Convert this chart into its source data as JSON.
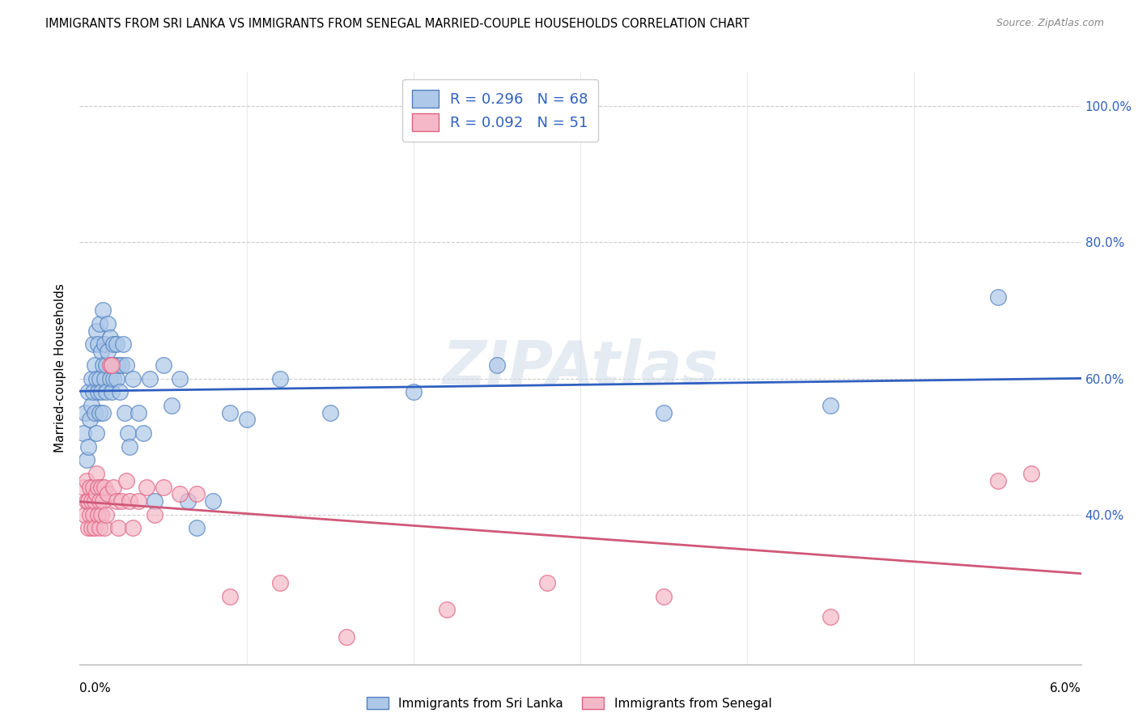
{
  "title": "IMMIGRANTS FROM SRI LANKA VS IMMIGRANTS FROM SENEGAL MARRIED-COUPLE HOUSEHOLDS CORRELATION CHART",
  "source": "Source: ZipAtlas.com",
  "ylabel": "Married-couple Households",
  "ytick_values": [
    100,
    80,
    60,
    40
  ],
  "ytick_labels": [
    "100.0%",
    "80.0%",
    "60.0%",
    "40.0%"
  ],
  "xrange": [
    0.0,
    6.0
  ],
  "yrange": [
    18,
    105
  ],
  "watermark": "ZIPAtlas",
  "legend_r1": "R = 0.296",
  "legend_n1": "N = 68",
  "legend_r2": "R = 0.092",
  "legend_n2": "N = 51",
  "color_sri_lanka_fill": "#adc8e8",
  "color_senegal_fill": "#f5b8c8",
  "color_sri_lanka_edge": "#5080c0",
  "color_senegal_edge": "#e06080",
  "color_line_sri_lanka": "#3060c0",
  "color_line_senegal": "#d05878",
  "title_fontsize": 10.5,
  "sri_lanka_x": [
    0.02,
    0.03,
    0.04,
    0.05,
    0.05,
    0.06,
    0.07,
    0.07,
    0.08,
    0.08,
    0.09,
    0.09,
    0.1,
    0.1,
    0.1,
    0.11,
    0.11,
    0.12,
    0.12,
    0.12,
    0.13,
    0.13,
    0.14,
    0.14,
    0.14,
    0.15,
    0.15,
    0.16,
    0.16,
    0.17,
    0.17,
    0.18,
    0.18,
    0.19,
    0.19,
    0.2,
    0.2,
    0.21,
    0.22,
    0.22,
    0.23,
    0.24,
    0.25,
    0.26,
    0.27,
    0.28,
    0.29,
    0.3,
    0.32,
    0.35,
    0.38,
    0.42,
    0.45,
    0.5,
    0.55,
    0.6,
    0.65,
    0.7,
    0.8,
    0.9,
    1.0,
    1.2,
    1.5,
    2.0,
    2.5,
    3.5,
    4.5,
    5.5
  ],
  "sri_lanka_y": [
    52,
    55,
    48,
    58,
    50,
    54,
    60,
    56,
    58,
    65,
    55,
    62,
    52,
    60,
    67,
    58,
    65,
    60,
    55,
    68,
    58,
    64,
    62,
    55,
    70,
    60,
    65,
    62,
    58,
    64,
    68,
    60,
    66,
    58,
    62,
    60,
    65,
    62,
    60,
    65,
    62,
    58,
    62,
    65,
    55,
    62,
    52,
    50,
    60,
    55,
    52,
    60,
    42,
    62,
    56,
    60,
    42,
    38,
    42,
    55,
    54,
    60,
    55,
    58,
    62,
    55,
    56,
    72
  ],
  "senegal_x": [
    0.02,
    0.03,
    0.04,
    0.04,
    0.05,
    0.05,
    0.06,
    0.06,
    0.07,
    0.07,
    0.08,
    0.08,
    0.09,
    0.09,
    0.1,
    0.1,
    0.11,
    0.11,
    0.12,
    0.12,
    0.13,
    0.13,
    0.14,
    0.15,
    0.15,
    0.16,
    0.17,
    0.18,
    0.19,
    0.2,
    0.22,
    0.23,
    0.25,
    0.28,
    0.3,
    0.32,
    0.35,
    0.4,
    0.45,
    0.5,
    0.6,
    0.7,
    0.9,
    1.2,
    1.6,
    2.2,
    2.8,
    3.5,
    4.5,
    5.5,
    5.7
  ],
  "senegal_y": [
    44,
    40,
    42,
    45,
    38,
    42,
    40,
    44,
    38,
    42,
    40,
    44,
    42,
    38,
    43,
    46,
    40,
    44,
    42,
    38,
    44,
    40,
    42,
    38,
    44,
    40,
    43,
    62,
    62,
    44,
    42,
    38,
    42,
    45,
    42,
    38,
    42,
    44,
    40,
    44,
    43,
    43,
    28,
    30,
    22,
    26,
    30,
    28,
    25,
    45,
    46
  ]
}
